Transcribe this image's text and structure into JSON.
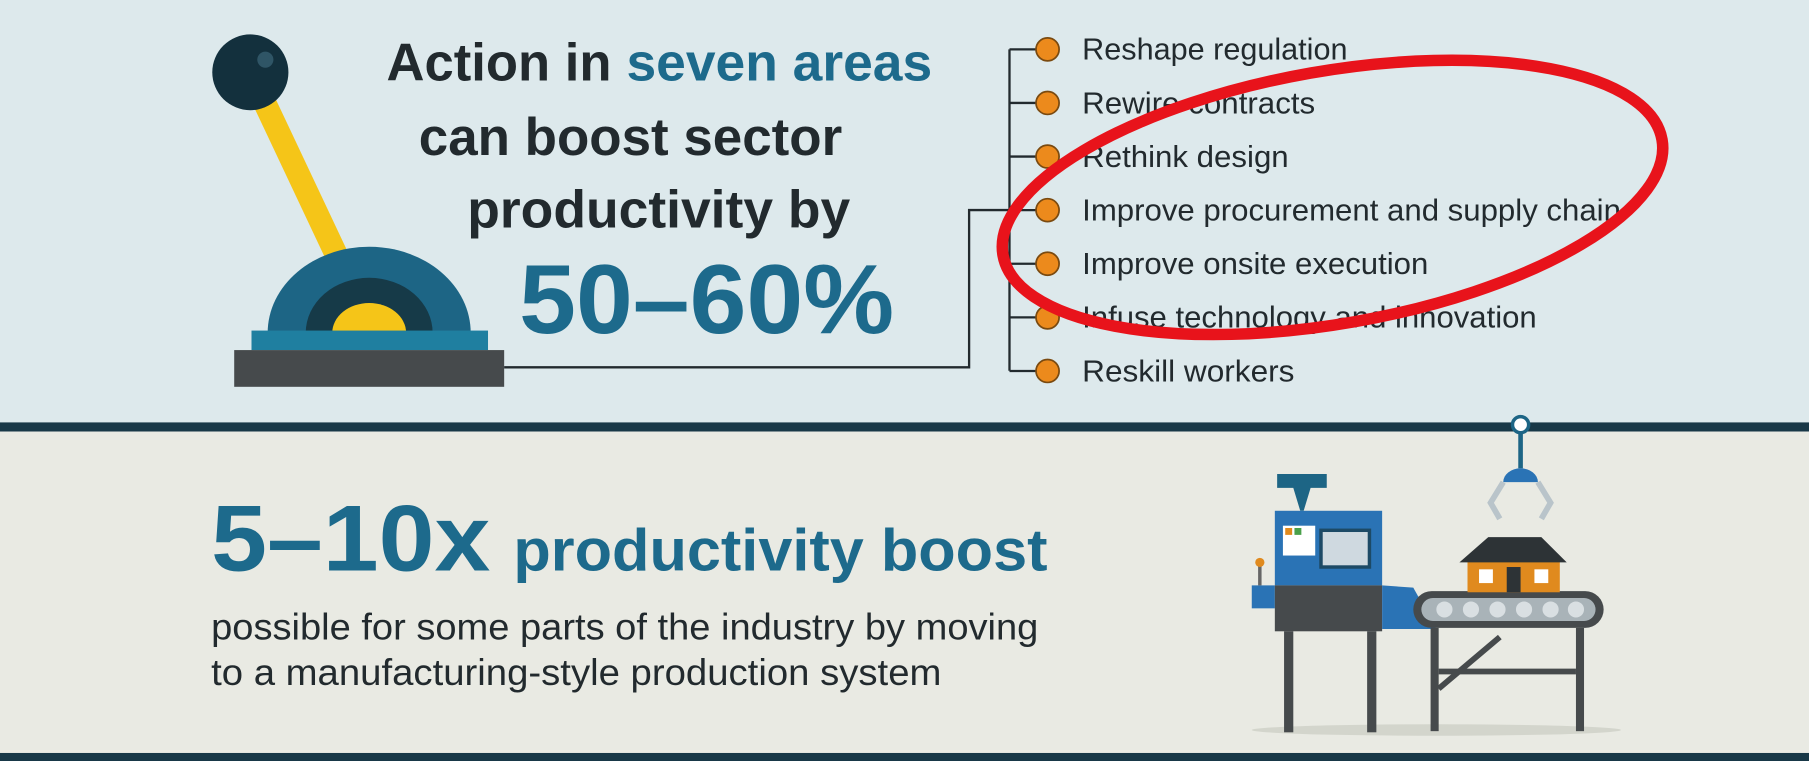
{
  "headline": {
    "line1_prefix": "Action in",
    "line1_highlight": "seven areas",
    "line2": "can boost sector",
    "line3": "productivity by",
    "figure": "50–60%"
  },
  "actions": [
    "Reshape regulation",
    "Rewire contracts",
    "Rethink design",
    "Improve procurement and supply chain",
    "Improve onsite execution",
    "Infuse technology and innovation",
    "Reskill workers"
  ],
  "boost": {
    "figure": "5–10x",
    "label": "productivity boost",
    "description_lines": [
      "possible for some parts of the industry by moving",
      "to a manufacturing-style production system"
    ]
  }
}
